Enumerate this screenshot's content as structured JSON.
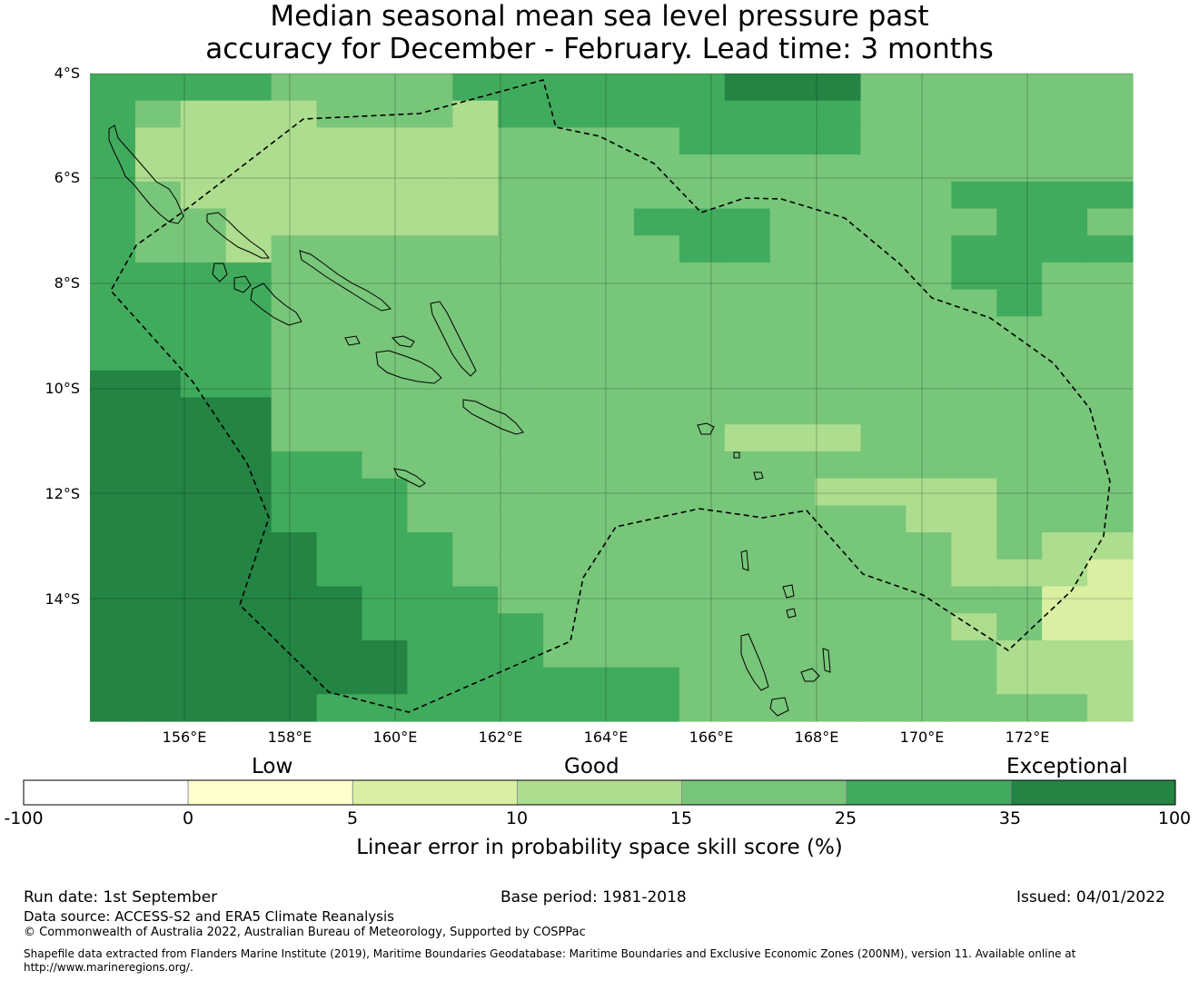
{
  "title": {
    "line1": "Median seasonal mean sea level pressure past",
    "line2": "accuracy for December - February. Lead time: 3 months"
  },
  "map": {
    "lat_ticks": [
      "4°S",
      "6°S",
      "8°S",
      "10°S",
      "12°S",
      "14°S"
    ],
    "lon_ticks": [
      "156°E",
      "158°E",
      "160°E",
      "162°E",
      "164°E",
      "166°E",
      "168°E",
      "170°E",
      "172°E"
    ],
    "grid_rows": [
      "44443333444444555333333",
      "43222333244444444333333",
      "42222222233334444333333",
      "42222222233333333333333",
      "43222222233333333334444",
      "43322222233344433333443",
      "43323333333334433334444",
      "44443333333333333334433",
      "44443333333333333333433",
      "44443333333333333333333",
      "44443333333333333333333",
      "55443333333333333333333",
      "55553333333333333333333",
      "55553333333333222333333",
      "55554433333333333333333",
      "55554443333333332222333",
      "55554443333333333322333",
      "55555444333333333332322",
      "55555444333333333332221",
      "55555544433333333333311",
      "55555544443333333332311",
      "55555554443333333333222",
      "55555554444443333333222",
      "55555444444443333333332"
    ],
    "colors": {
      "level_1": "#d9f0a3",
      "level_2": "#addd8e",
      "level_3": "#78c679",
      "level_4": "#41ab5d",
      "level_5": "#238443",
      "gridline": "#000000",
      "coastline": "#000000",
      "eez_boundary": "#000000"
    }
  },
  "legend": {
    "categories": [
      "Low",
      "Good",
      "Exceptional"
    ],
    "ticks": [
      "-100",
      "0",
      "5",
      "10",
      "15",
      "25",
      "35",
      "100"
    ],
    "colors": [
      "#ffffff",
      "#ffffcc",
      "#d9f0a3",
      "#addd8e",
      "#78c679",
      "#41ab5d",
      "#238443"
    ],
    "label": "Linear error in probability space skill score (%)"
  },
  "footer": {
    "run_date": "Run date: 1st September",
    "base_period": "Base period: 1981-2018",
    "issued": "Issued: 04/01/2022",
    "data_source": "Data source: ACCESS-S2 and ERA5 Climate Reanalysis",
    "copyright": "© Commonwealth of Australia 2022, Australian Bureau of Meteorology, Supported by COSPPac",
    "shapefile_line1": "Shapefile data extracted from Flanders Marine Institute (2019), Maritime Boundaries Geodatabase: Maritime Boundaries and Exclusive Economic Zones (200NM), version 11. Available online at",
    "shapefile_line2": "http://www.marineregions.org/."
  }
}
